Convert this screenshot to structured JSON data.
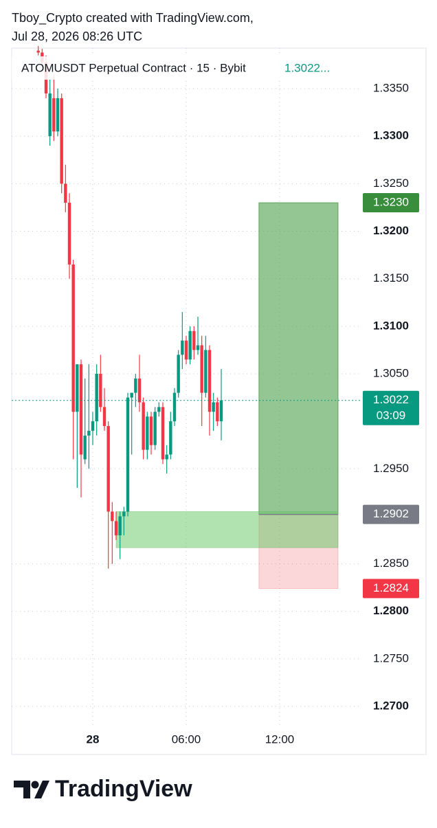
{
  "header": {
    "line1": "Tboy_Crypto created with TradingView.com,",
    "line2": "Jul 28, 2026 08:26 UTC"
  },
  "chart_data": {
    "type": "candlestick",
    "legend": {
      "symbol": "ATOMUSDT Perpetual Contract · 15 · Bybit",
      "price": "1.3022..."
    },
    "up_color": "#089981",
    "down_color": "#f23645",
    "grid": true,
    "x": [
      -3.5,
      -3.25,
      -3,
      -2.75,
      -2.5,
      -2.25,
      -2,
      -1.75,
      -1.5,
      -1.25,
      -1,
      -0.75,
      -0.5,
      -0.25,
      0,
      0.25,
      0.5,
      0.75,
      1,
      1.25,
      1.5,
      1.75,
      2,
      2.25,
      2.5,
      2.75,
      3,
      3.25,
      3.5,
      3.75,
      4,
      4.25,
      4.5,
      4.75,
      5,
      5.25,
      5.5,
      5.75,
      6,
      6.25,
      6.5,
      6.75,
      7,
      7.25,
      7.5,
      7.75,
      8,
      8.25
    ],
    "open": [
      1.339,
      1.3388,
      1.3378,
      1.33,
      1.334,
      1.3305,
      1.334,
      1.325,
      1.323,
      1.3165,
      1.301,
      1.306,
      1.296,
      1.2985,
      1.299,
      1.3,
      1.305,
      1.3015,
      1.2995,
      1.2905,
      1.2895,
      1.288,
      1.29,
      1.2905,
      1.3025,
      1.303,
      1.3045,
      1.302,
      1.297,
      1.3005,
      1.2975,
      1.301,
      1.3015,
      1.296,
      1.2965,
      1.3,
      1.303,
      1.307,
      1.3085,
      1.3065,
      1.3095,
      1.3075,
      1.308,
      1.303,
      1.3075,
      1.301,
      1.302,
      1.3
    ],
    "high": [
      1.3395,
      1.3392,
      1.3385,
      1.336,
      1.3365,
      1.335,
      1.3345,
      1.327,
      1.324,
      1.317,
      1.306,
      1.3065,
      1.3045,
      1.306,
      1.301,
      1.306,
      1.307,
      1.3035,
      1.3,
      1.2915,
      1.2905,
      1.2905,
      1.291,
      1.303,
      1.303,
      1.305,
      1.307,
      1.3025,
      1.301,
      1.301,
      1.3015,
      1.302,
      1.302,
      1.2975,
      1.301,
      1.3035,
      1.3075,
      1.3115,
      1.309,
      1.31,
      1.31,
      1.311,
      1.309,
      1.309,
      1.308,
      1.303,
      1.3025,
      1.3055
    ],
    "low": [
      1.3385,
      1.3375,
      1.334,
      1.329,
      1.3295,
      1.33,
      1.324,
      1.322,
      1.315,
      1.296,
      1.293,
      1.292,
      1.2955,
      1.295,
      1.2975,
      1.2985,
      1.301,
      1.299,
      1.2845,
      1.285,
      1.2875,
      1.2855,
      1.288,
      1.29,
      1.2965,
      1.3015,
      1.301,
      1.296,
      1.296,
      1.2965,
      1.297,
      1.3005,
      1.2955,
      1.2945,
      1.296,
      1.2995,
      1.3025,
      1.3055,
      1.306,
      1.306,
      1.3065,
      1.307,
      1.2995,
      1.3025,
      1.2985,
      1.299,
      1.2995,
      1.298
    ],
    "close": [
      1.3388,
      1.3378,
      1.3345,
      1.3345,
      1.3305,
      1.334,
      1.325,
      1.323,
      1.3165,
      1.301,
      1.306,
      1.2965,
      1.2985,
      1.299,
      1.3,
      1.305,
      1.3015,
      1.2995,
      1.2905,
      1.2895,
      1.288,
      1.29,
      1.2905,
      1.3025,
      1.303,
      1.3045,
      1.302,
      1.297,
      1.3005,
      1.2975,
      1.301,
      1.3015,
      1.296,
      1.2965,
      1.3,
      1.303,
      1.307,
      1.3085,
      1.3065,
      1.3095,
      1.3075,
      1.308,
      1.303,
      1.3075,
      1.301,
      1.302,
      1.3,
      1.3022
    ],
    "xlim": [
      -5.206,
      21.397
    ],
    "xticks": [
      {
        "value": 0,
        "label": "28"
      },
      {
        "value": 6,
        "label": "06:00"
      },
      {
        "value": 12,
        "label": "12:00"
      }
    ],
    "ylim": [
      1.26769,
      1.33927
    ],
    "yticks": [
      {
        "value": 1.335,
        "label": "1.3350"
      },
      {
        "value": 1.33,
        "label": "1.3300"
      },
      {
        "value": 1.325,
        "label": "1.3250"
      },
      {
        "value": 1.32,
        "label": "1.3200"
      },
      {
        "value": 1.315,
        "label": "1.3150"
      },
      {
        "value": 1.31,
        "label": "1.3100"
      },
      {
        "value": 1.305,
        "label": "1.3050"
      },
      {
        "value": 1.295,
        "label": "1.2950"
      },
      {
        "value": 1.285,
        "label": "1.2850"
      },
      {
        "value": 1.28,
        "label": "1.2800"
      },
      {
        "value": 1.275,
        "label": "1.2750"
      },
      {
        "value": 1.27,
        "label": "1.2700"
      }
    ],
    "last_price": 1.3022,
    "countdown": "03:09",
    "position": {
      "start": 10.67,
      "end": 15.75,
      "take_profit": {
        "value": 1.323,
        "label": "1.3230"
      },
      "entry": {
        "value": 1.2902,
        "label": "1.2902"
      },
      "stop_loss": {
        "value": 1.2824,
        "label": "1.2824"
      }
    },
    "zone": {
      "start": 1.5,
      "end": 15.75,
      "top": 1.2905,
      "bottom": 1.2867
    }
  },
  "footer": {
    "brand": "TradingView"
  }
}
